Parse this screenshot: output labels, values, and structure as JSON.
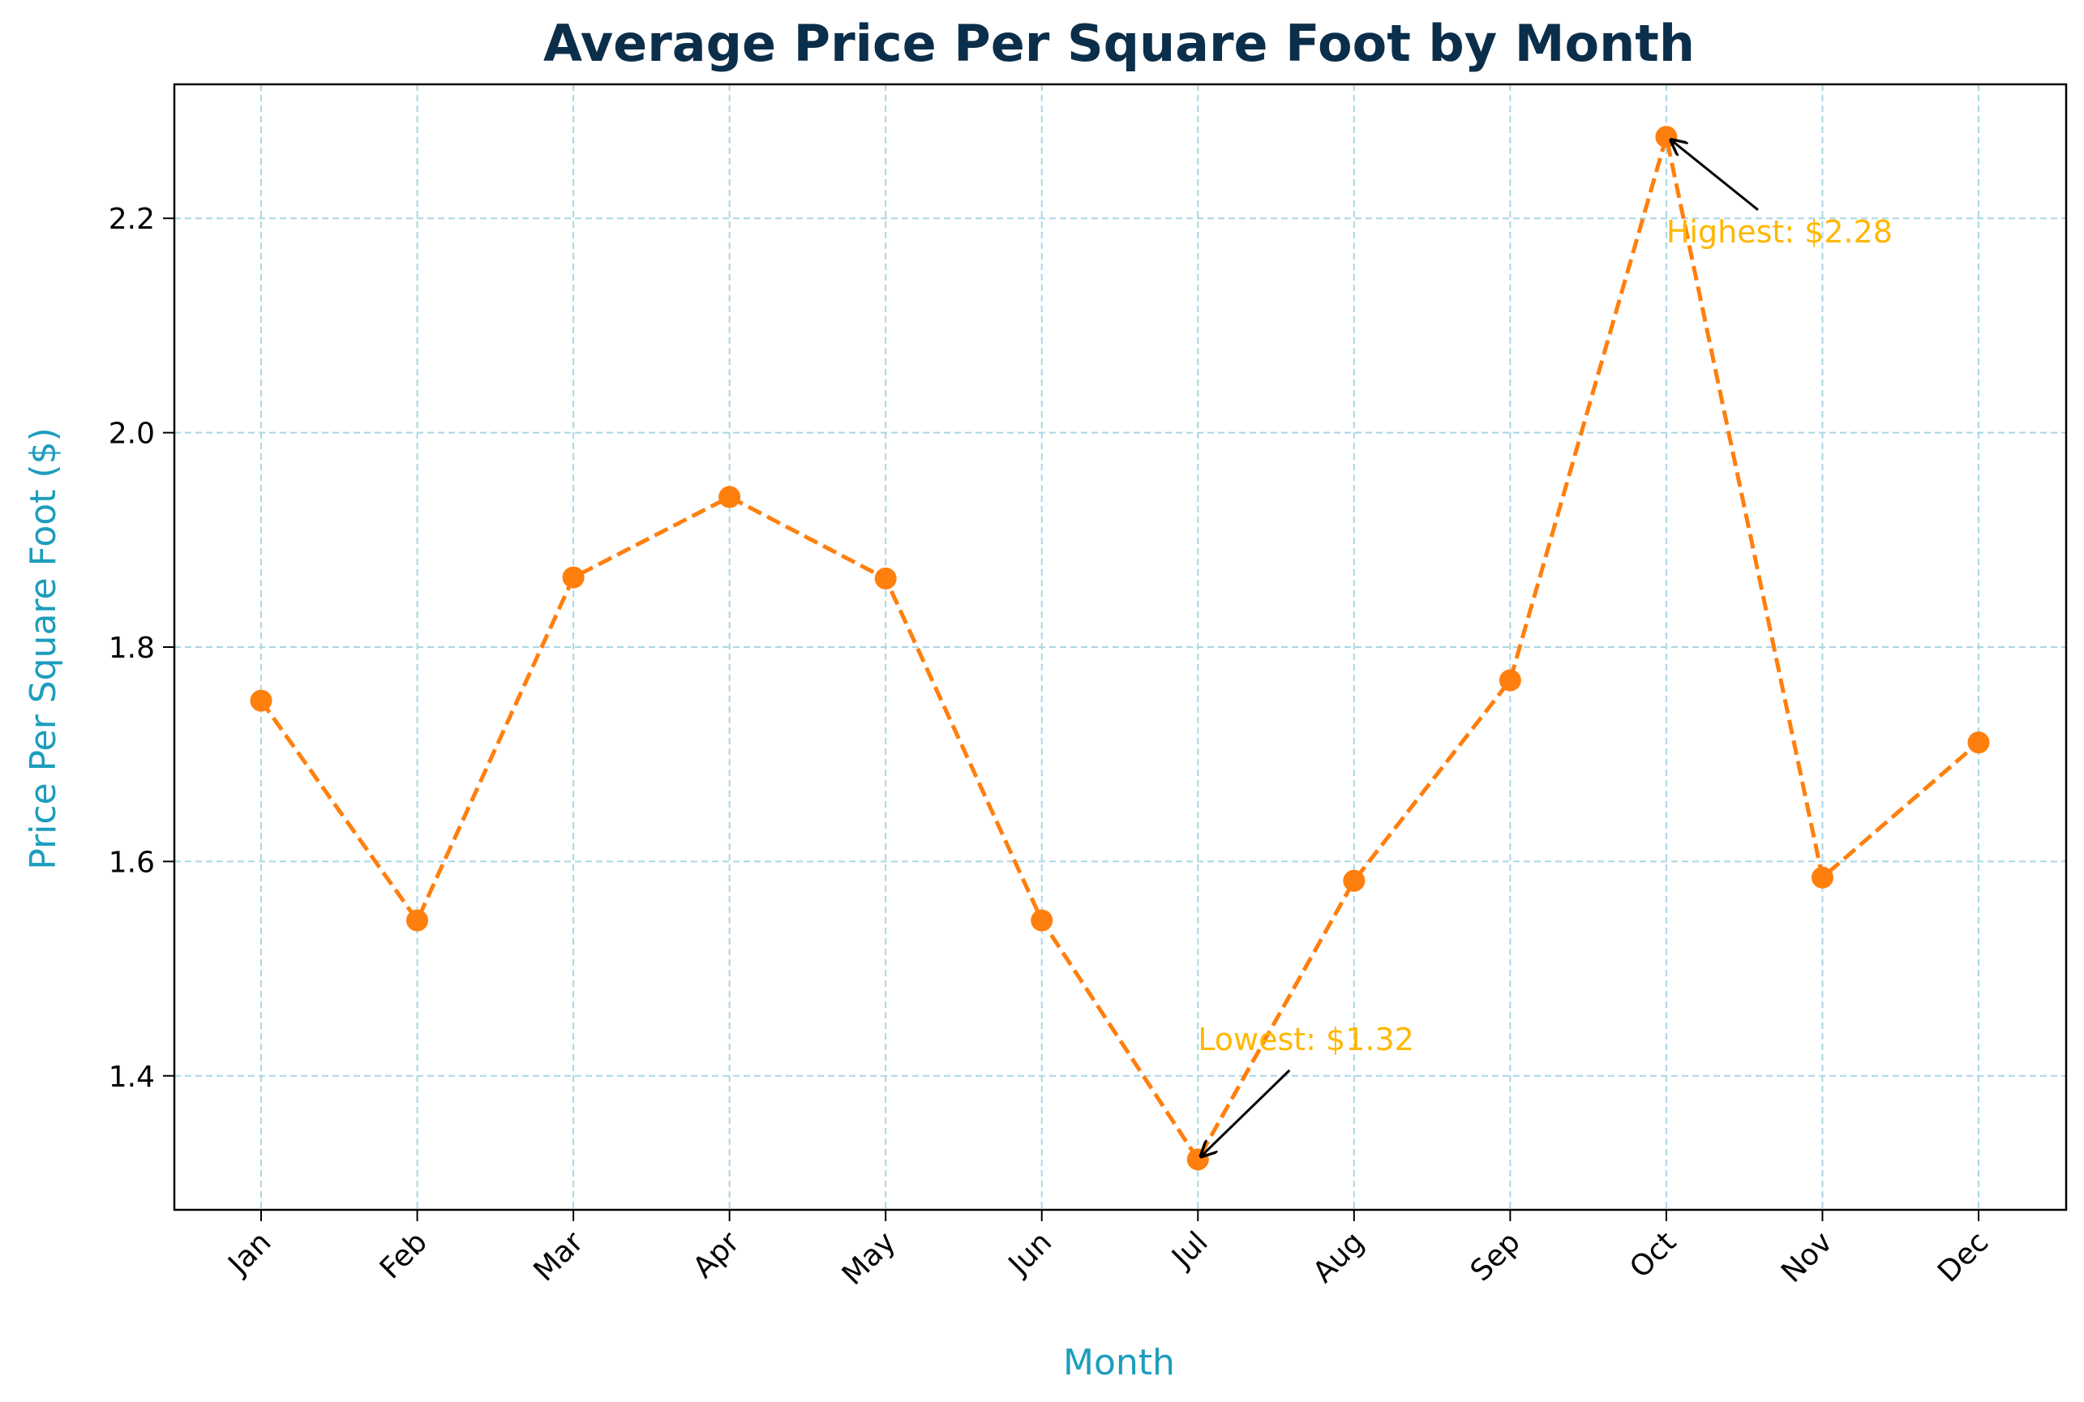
{
  "chart_data": {
    "type": "line",
    "title": "Average Price Per Square Foot by Month",
    "xlabel": "Month",
    "ylabel": "Price Per Square Foot ($)",
    "categories": [
      "Jan",
      "Feb",
      "Mar",
      "Apr",
      "May",
      "Jun",
      "Jul",
      "Aug",
      "Sep",
      "Oct",
      "Nov",
      "Dec"
    ],
    "values": [
      1.75,
      1.545,
      1.865,
      1.94,
      1.864,
      1.545,
      1.322,
      1.582,
      1.769,
      2.276,
      1.585,
      1.711
    ],
    "ylim": [
      1.275,
      2.325
    ],
    "yticks": [
      "1.4",
      "1.6",
      "1.8",
      "2.0",
      "2.2"
    ],
    "grid": true,
    "line_style": "dashed",
    "marker": "circle",
    "annotations": [
      {
        "text": "Lowest: $1.32",
        "category": "Jul",
        "value": 1.322
      },
      {
        "text": "Highest: $2.28",
        "category": "Oct",
        "value": 2.276
      }
    ],
    "colors": {
      "line": "#ff7f0e",
      "marker": "#ff7f0e",
      "title": "#0b2e4a",
      "axis_label": "#1d9dbd",
      "annotation": "#ffb700",
      "grid": "#a9d6e5"
    }
  }
}
